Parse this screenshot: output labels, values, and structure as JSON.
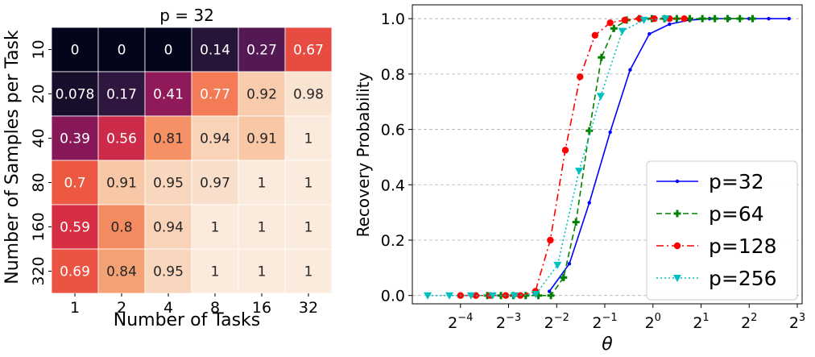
{
  "chart_data": [
    {
      "type": "heatmap",
      "title": "p = 32",
      "xlabel": "Number of Tasks",
      "ylabel": "Number of Samples per Task",
      "x_categories": [
        "1",
        "2",
        "4",
        "8",
        "16",
        "32"
      ],
      "y_categories": [
        "10",
        "20",
        "40",
        "80",
        "160",
        "320"
      ],
      "values": [
        [
          0,
          0,
          0,
          0.14,
          0.27,
          0.67
        ],
        [
          0.078,
          0.17,
          0.41,
          0.77,
          0.92,
          0.98
        ],
        [
          0.39,
          0.56,
          0.81,
          0.94,
          0.91,
          1
        ],
        [
          0.7,
          0.91,
          0.95,
          0.97,
          1,
          1
        ],
        [
          0.59,
          0.8,
          0.94,
          1,
          1,
          1
        ],
        [
          0.69,
          0.84,
          0.95,
          1,
          1,
          1
        ]
      ],
      "labels": [
        [
          "0",
          "0",
          "0",
          "0.14",
          "0.27",
          "0.67"
        ],
        [
          "0.078",
          "0.17",
          "0.41",
          "0.77",
          "0.92",
          "0.98"
        ],
        [
          "0.39",
          "0.56",
          "0.81",
          "0.94",
          "0.91",
          "1"
        ],
        [
          "0.7",
          "0.91",
          "0.95",
          "0.97",
          "1",
          "1"
        ],
        [
          "0.59",
          "0.8",
          "0.94",
          "1",
          "1",
          "1"
        ],
        [
          "0.69",
          "0.84",
          "0.95",
          "1",
          "1",
          "1"
        ]
      ],
      "colormap": "rocket"
    },
    {
      "type": "line",
      "xlabel": "θ",
      "ylabel": "Recovery Probability",
      "x_scale": "log2",
      "xlim_exponent": [
        -5,
        3.1
      ],
      "ylim": [
        -0.03,
        1.05
      ],
      "x_ticks": [
        {
          "base": "2",
          "exp": "−4",
          "value": 0.0625
        },
        {
          "base": "2",
          "exp": "−3",
          "value": 0.125
        },
        {
          "base": "2",
          "exp": "−2",
          "value": 0.25
        },
        {
          "base": "2",
          "exp": "−1",
          "value": 0.5
        },
        {
          "base": "2",
          "exp": "0",
          "value": 1
        },
        {
          "base": "2",
          "exp": "1",
          "value": 2
        },
        {
          "base": "2",
          "exp": "2",
          "value": 4
        },
        {
          "base": "2",
          "exp": "3",
          "value": 8
        }
      ],
      "y_ticks": [
        "0.0",
        "0.2",
        "0.4",
        "0.6",
        "0.8",
        "1.0"
      ],
      "grid": "y",
      "legend_position": "bottom-right",
      "series": [
        {
          "name": "p=32",
          "color": "#0000ff",
          "dash": "solid",
          "marker": "dot",
          "x": [
            0.225,
            0.3,
            0.4,
            0.54,
            0.72,
            0.95,
            1.27,
            1.7,
            2.26,
            3.0,
            4.0,
            5.3,
            7.1
          ],
          "y": [
            0.015,
            0.115,
            0.335,
            0.59,
            0.815,
            0.945,
            0.98,
            0.995,
            1.0,
            1.0,
            1.0,
            1.0,
            1.0
          ]
        },
        {
          "name": "p=64",
          "color": "#008000",
          "dash": "dashed",
          "marker": "plus",
          "x": [
            0.092,
            0.112,
            0.134,
            0.16,
            0.192,
            0.23,
            0.276,
            0.33,
            0.4,
            0.476,
            0.57,
            0.685,
            0.82,
            0.985,
            1.18,
            1.41,
            1.7,
            2.04,
            2.44,
            2.93,
            3.5,
            4.2
          ],
          "y": [
            0,
            0,
            0,
            0,
            0,
            0,
            0.065,
            0.265,
            0.595,
            0.86,
            0.965,
            0.995,
            1.0,
            1.0,
            1.0,
            1.0,
            1.0,
            1.0,
            1.0,
            1.0,
            1.0,
            1.0
          ]
        },
        {
          "name": "p=128",
          "color": "#ff0000",
          "dash": "dashdot",
          "marker": "circle",
          "x": [
            0.0625,
            0.078,
            0.096,
            0.12,
            0.148,
            0.184,
            0.228,
            0.283,
            0.35,
            0.434,
            0.54,
            0.667,
            0.826,
            1.02,
            1.27,
            1.57
          ],
          "y": [
            0,
            0,
            0,
            0,
            0,
            0.015,
            0.2,
            0.525,
            0.79,
            0.94,
            0.985,
            0.995,
            1.0,
            1.0,
            1.0,
            1.0
          ]
        },
        {
          "name": "p=256",
          "color": "#00bfbf",
          "dash": "dotted",
          "marker": "triangle",
          "x": [
            0.039,
            0.0533,
            0.0728,
            0.0994,
            0.1357,
            0.1853,
            0.253,
            0.345,
            0.471,
            0.643,
            0.878,
            1.2
          ],
          "y": [
            0,
            0,
            0,
            0,
            0,
            0.005,
            0.11,
            0.45,
            0.72,
            0.955,
            0.995,
            1.0
          ]
        }
      ]
    }
  ]
}
